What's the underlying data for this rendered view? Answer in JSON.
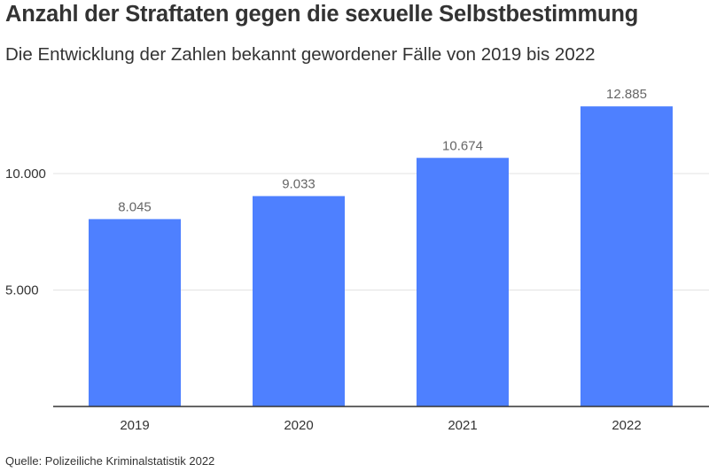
{
  "chart_data": {
    "type": "bar",
    "title": "Anzahl der Straftaten gegen die sexuelle Selbstbestimmung",
    "subtitle": "Die Entwicklung der Zahlen bekannt gewordener Fälle von 2019 bis 2022",
    "categories": [
      "2019",
      "2020",
      "2021",
      "2022"
    ],
    "values": [
      8045,
      9033,
      10674,
      12885
    ],
    "value_labels": [
      "8.045",
      "9.033",
      "10.674",
      "12.885"
    ],
    "yticks": [
      5000,
      10000
    ],
    "ytick_labels": [
      "5.000",
      "10.000"
    ],
    "ylim": [
      0,
      13000
    ],
    "grid": true,
    "bar_color": "#4e80ff",
    "source": "Quelle: Polizeiliche Kriminalstatistik 2022"
  }
}
